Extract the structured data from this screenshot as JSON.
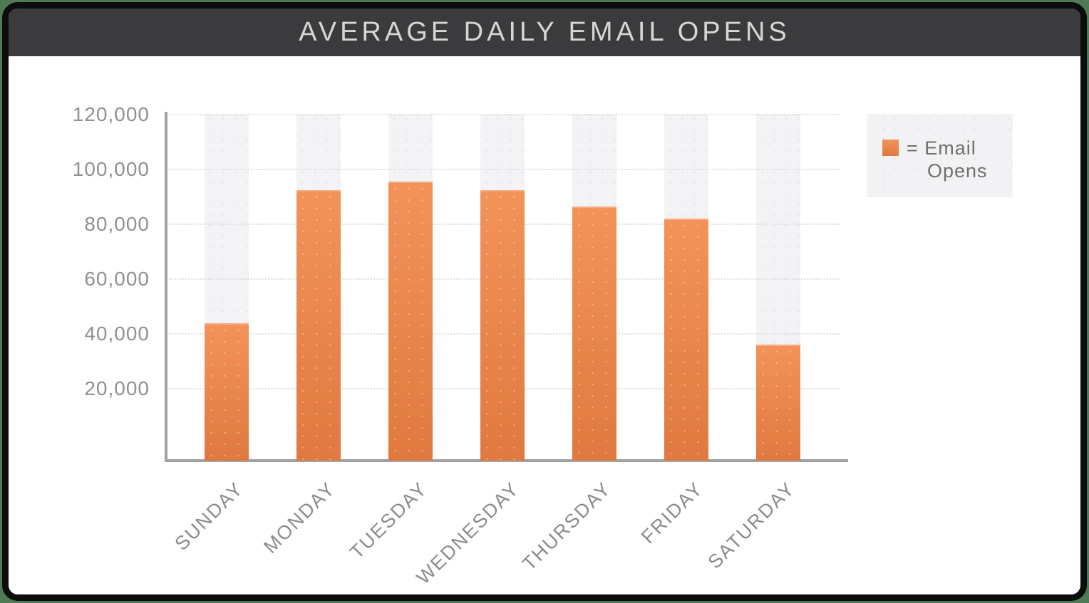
{
  "page": {
    "background_color": "#4e7a55",
    "card_background": "#ffffff",
    "card_border_color": "#0d0d0d"
  },
  "header": {
    "title": "AVERAGE DAILY EMAIL OPENS",
    "background_color": "#3b3b3d",
    "text_color": "#d6d6d6"
  },
  "legend": {
    "line1": "= Email",
    "line2": "Opens",
    "background_color": "#f2f2f4",
    "swatch_color_top": "#f2935a",
    "swatch_color_bottom": "#e0793f"
  },
  "chart_data": {
    "type": "bar",
    "title": "AVERAGE DAILY EMAIL OPENS",
    "series": [
      {
        "name": "Email Opens",
        "values": [
          44000,
          92500,
          95500,
          92500,
          86500,
          82000,
          36000
        ]
      }
    ],
    "categories": [
      "SUNDAY",
      "MONDAY",
      "TUESDAY",
      "WEDNESDAY",
      "THURSDAY",
      "FRIDAY",
      "SATURDAY"
    ],
    "xlabel": "",
    "ylabel": "",
    "ylim": [
      0,
      125000
    ],
    "y_tick_labels": [
      "120,000",
      "100,000",
      "80,000",
      "60,000",
      "40,000",
      "20,000"
    ],
    "y_tick_values": [
      120000,
      100000,
      80000,
      60000,
      40000,
      20000
    ],
    "grid": "horizontal-dotted",
    "legend_position": "right",
    "bar_color_top": "#f2935a",
    "bar_color_bottom": "#e0793f",
    "band_color": "#f3f3f6",
    "axis_color": "#a2a2a2"
  }
}
